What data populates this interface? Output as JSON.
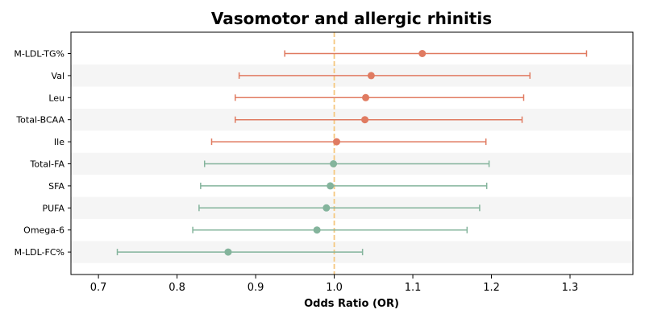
{
  "chart_data": {
    "type": "forest",
    "title": "Vasomotor and allergic rhinitis",
    "xlabel": "Odds Ratio (OR)",
    "ylabel": "",
    "xlim": [
      0.665,
      1.38
    ],
    "xticks": [
      0.7,
      0.8,
      0.9,
      1.0,
      1.1,
      1.2,
      1.3
    ],
    "xtick_labels": [
      "0.7",
      "0.8",
      "0.9",
      "1.0",
      "1.1",
      "1.2",
      "1.3"
    ],
    "reference_line": 1.0,
    "grid": false,
    "colors": {
      "risk": "#e07b61",
      "protective": "#84b49c",
      "reference": "#f5c77e",
      "band": "#f5f5f5"
    },
    "rows": [
      {
        "label": "M-LDL-TG%",
        "or": 1.112,
        "lower": 0.937,
        "upper": 1.321,
        "group": "risk"
      },
      {
        "label": "Val",
        "or": 1.047,
        "lower": 0.879,
        "upper": 1.249,
        "group": "risk"
      },
      {
        "label": "Leu",
        "or": 1.04,
        "lower": 0.874,
        "upper": 1.241,
        "group": "risk"
      },
      {
        "label": "Total-BCAA",
        "or": 1.039,
        "lower": 0.874,
        "upper": 1.239,
        "group": "risk"
      },
      {
        "label": "Ile",
        "or": 1.003,
        "lower": 0.844,
        "upper": 1.193,
        "group": "risk"
      },
      {
        "label": "Total-FA",
        "or": 0.999,
        "lower": 0.835,
        "upper": 1.197,
        "group": "protective"
      },
      {
        "label": "SFA",
        "or": 0.995,
        "lower": 0.83,
        "upper": 1.194,
        "group": "protective"
      },
      {
        "label": "PUFA",
        "or": 0.99,
        "lower": 0.828,
        "upper": 1.185,
        "group": "protective"
      },
      {
        "label": "Omega-6",
        "or": 0.978,
        "lower": 0.82,
        "upper": 1.169,
        "group": "protective"
      },
      {
        "label": "M-LDL-FC%",
        "or": 0.865,
        "lower": 0.724,
        "upper": 1.036,
        "group": "protective"
      }
    ]
  }
}
